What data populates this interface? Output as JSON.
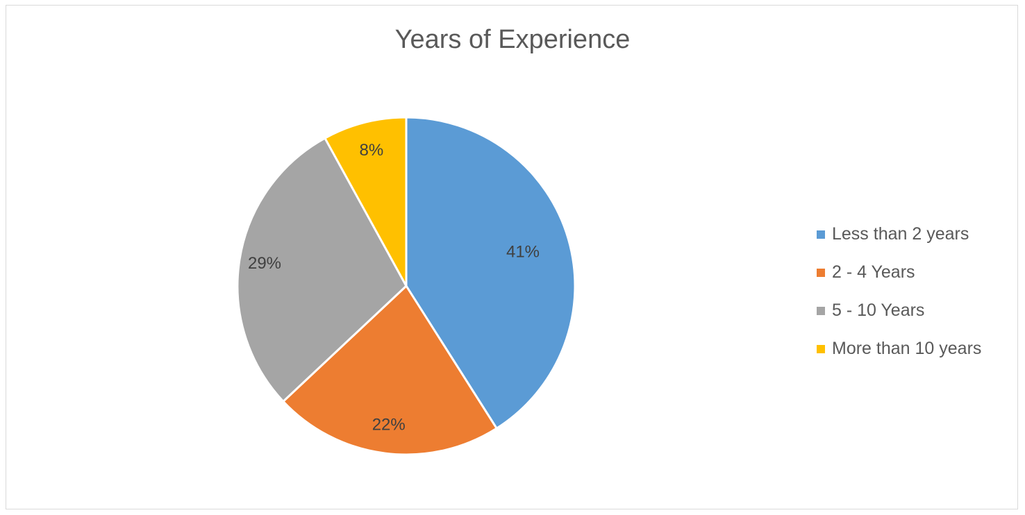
{
  "chart_data": {
    "type": "pie",
    "title": "Years of Experience",
    "categories": [
      "Less than 2 years",
      "2 - 4 Years",
      "5 - 10 Years",
      "More than 10 years"
    ],
    "values": [
      41,
      22,
      29,
      8
    ],
    "data_labels": [
      "41%",
      "22%",
      "29%",
      "8%"
    ],
    "colors": [
      "#5b9bd5",
      "#ed7d31",
      "#a5a5a5",
      "#ffc000"
    ],
    "legend_position": "right"
  }
}
